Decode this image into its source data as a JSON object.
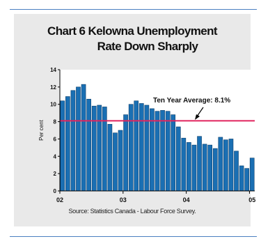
{
  "figure": {
    "title_line1": "Chart 6  Kelowna Unemployment",
    "title_line2": "Rate  Down Sharply",
    "source": "Source: Statistics Canada - Labour Force Survey."
  },
  "chart_data": {
    "type": "bar",
    "ylabel": "Per cent",
    "ylim": [
      0,
      14
    ],
    "yticks": [
      "0",
      "2",
      "4",
      "6",
      "8",
      "10",
      "12",
      "14"
    ],
    "xticks": [
      {
        "label": "02",
        "index": 0
      },
      {
        "label": "03",
        "index": 12
      },
      {
        "label": "04",
        "index": 24
      },
      {
        "label": "05",
        "index": 36
      }
    ],
    "values": [
      10.4,
      10.9,
      11.6,
      12.0,
      12.3,
      10.6,
      9.8,
      9.9,
      9.7,
      7.7,
      6.7,
      7.0,
      8.8,
      10.0,
      10.4,
      10.1,
      9.9,
      9.5,
      9.2,
      9.3,
      9.2,
      8.8,
      7.4,
      6.1,
      5.6,
      5.3,
      6.3,
      5.4,
      5.3,
      4.9,
      6.2,
      5.9,
      6.0,
      4.6,
      2.9,
      2.6,
      3.8
    ],
    "bar_color": "#1a6fb3",
    "reference_line": {
      "value": 8.1,
      "label": "Ten Year Average: 8.1%",
      "color": "#e0245e"
    }
  }
}
